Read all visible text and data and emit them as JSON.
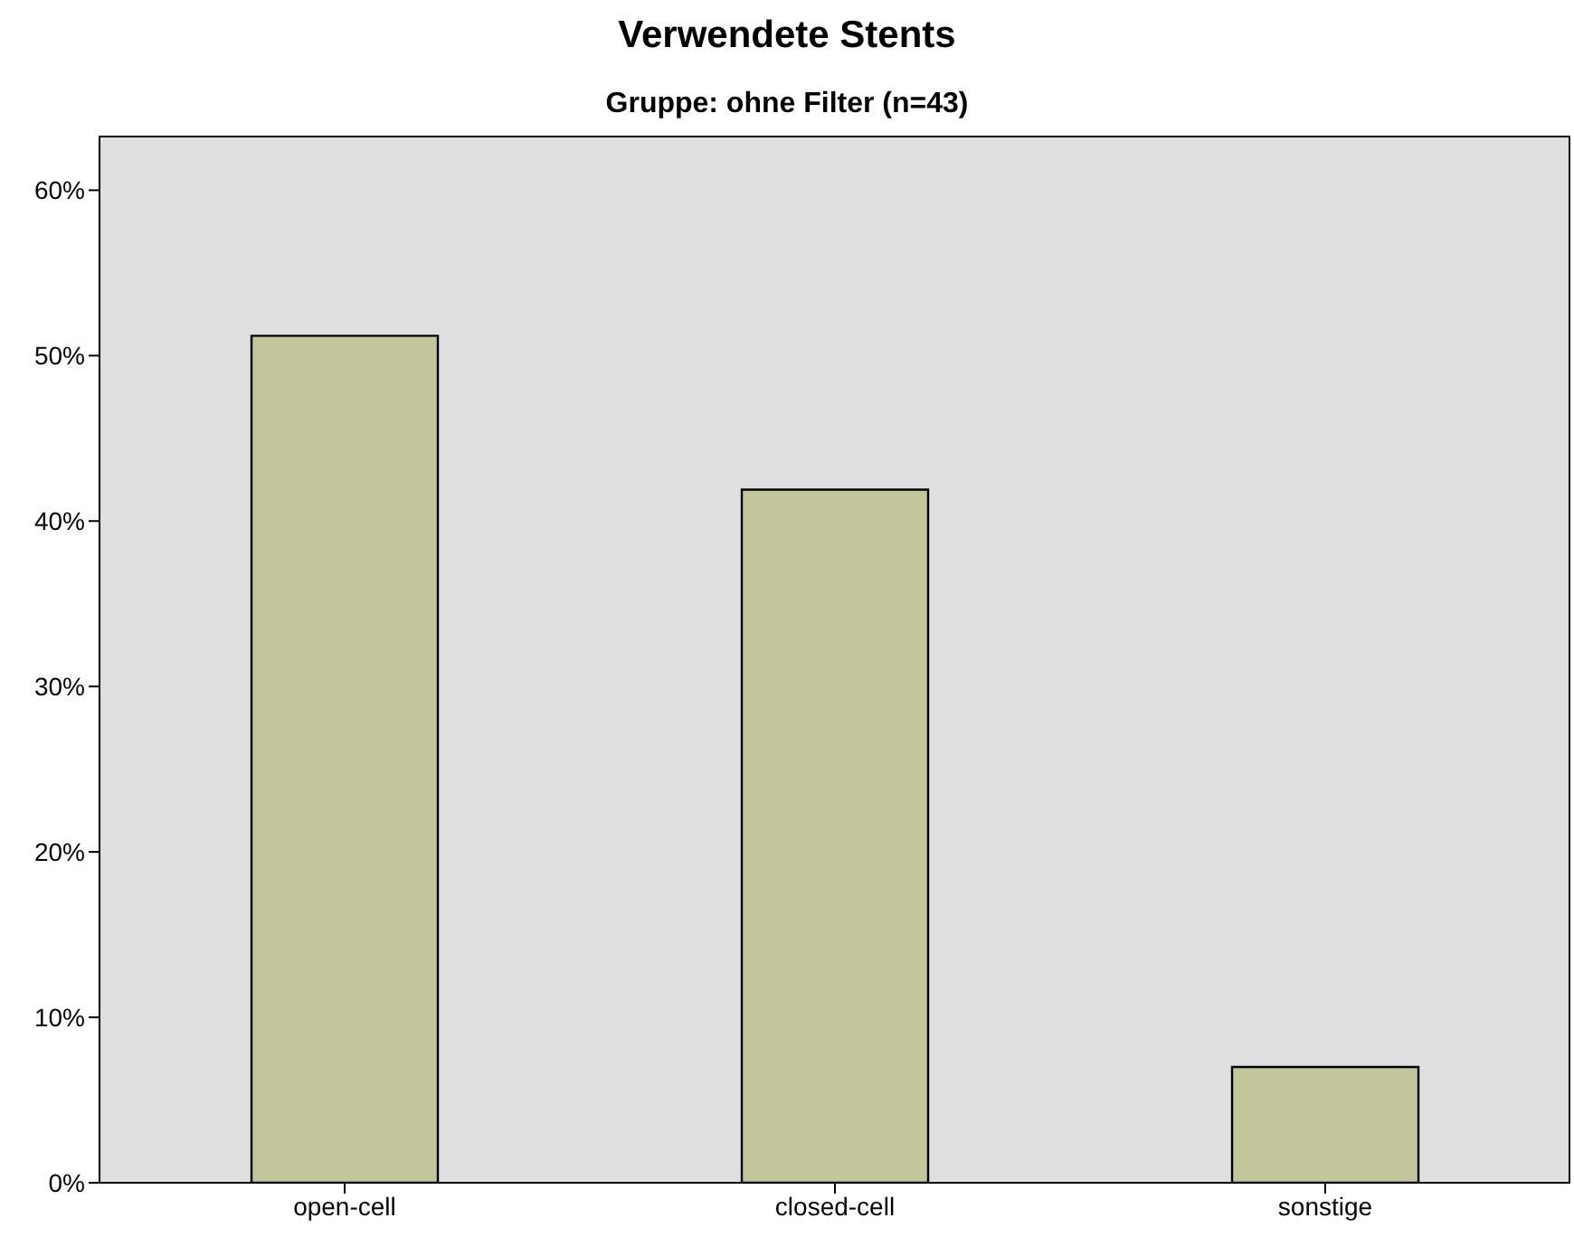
{
  "chart_data": {
    "type": "bar",
    "title": "Verwendete Stents",
    "subtitle": "Gruppe: ohne Filter (n=43)",
    "categories": [
      "open-cell",
      "closed-cell",
      "sonstige"
    ],
    "values": [
      51.2,
      41.9,
      7.0
    ],
    "color": "#c2c69a",
    "ylim": [
      0,
      63.3
    ],
    "yticks": [
      {
        "value": 0,
        "label": "0%"
      },
      {
        "value": 10,
        "label": "10%"
      },
      {
        "value": 20,
        "label": "20%"
      },
      {
        "value": 30,
        "label": "30%"
      },
      {
        "value": 40,
        "label": "40%"
      },
      {
        "value": 50,
        "label": "50%"
      },
      {
        "value": 60,
        "label": "60%"
      }
    ],
    "grid": false,
    "legend": false
  }
}
